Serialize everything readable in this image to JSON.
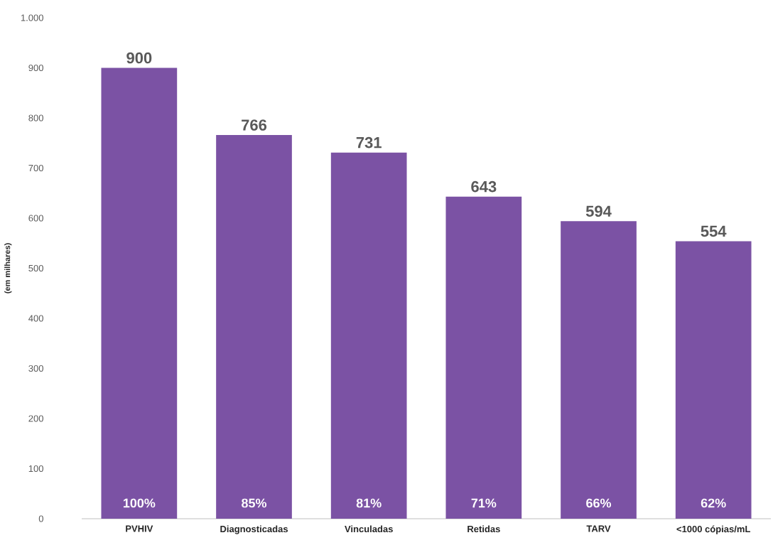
{
  "chart_data": {
    "type": "bar",
    "ylabel": "(em milhares)",
    "categories": [
      "PVHIV",
      "Diagnosticadas",
      "Vinculadas",
      "Retidas",
      "TARV",
      "<1000 cópias/mL"
    ],
    "values": [
      900,
      766,
      731,
      643,
      594,
      554
    ],
    "color": "#7b52a4",
    "data_labels": true,
    "ylim": [
      0,
      1000
    ],
    "yticks": [
      0,
      100,
      200,
      300,
      400,
      500,
      600,
      700,
      800,
      900,
      {
        "value": 1000,
        "label": "1.000"
      }
    ],
    "grid": false,
    "annotations": [
      "100%",
      "85%",
      "81%",
      "71%",
      "66%",
      "62%"
    ]
  }
}
